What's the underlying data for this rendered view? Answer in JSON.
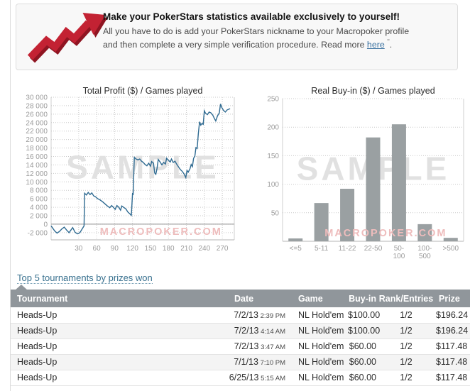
{
  "banner": {
    "title": "Make your PokerStars statistics available exclusively to yourself!",
    "line1": "All you have to do is add your PokerStars nickname to your Macropoker profile",
    "line2_prefix": "and then complete a very simple verification procedure. Read more ",
    "link_label": "here",
    "suffix_mark": "\"",
    "suffix_period": "."
  },
  "colors": {
    "table_header_bg": "#90969b",
    "link_blue": "#39718f",
    "arrow_red": "#c32233",
    "arrow_red_dark": "#8f1522"
  },
  "chart_data": [
    {
      "type": "line",
      "title": "Total Profit ($) / Games played",
      "xlabel": "Games played",
      "ylabel": "Total Profit ($)",
      "xlim": [
        -16,
        290
      ],
      "ylim": [
        -3700,
        30000
      ],
      "xtick_values": [
        30,
        60,
        90,
        120,
        150,
        180,
        210,
        240,
        270
      ],
      "ytick_values": [
        30000,
        28000,
        26000,
        24000,
        22000,
        20000,
        18000,
        16000,
        14000,
        12000,
        10000,
        8000,
        6000,
        4000,
        2000,
        0,
        -2000
      ],
      "ytick_labels": [
        "30 000",
        "28 000",
        "26 000",
        "24 000",
        "22 000",
        "20 000",
        "18 000",
        "16 000",
        "14 000",
        "12 000",
        "10 000",
        "8 000",
        "6 000",
        "4 000",
        "2 000",
        "0",
        "-2 000"
      ],
      "grid": "dotted-both",
      "zero_line": true,
      "watermark": "SAMPLE",
      "watermark2": "MACROPOKER.COM",
      "series": [
        {
          "name": "Total Profit",
          "color": "#2e6a91",
          "points": [
            [
              -16,
              -400
            ],
            [
              -10,
              -1600
            ],
            [
              -6,
              -2100
            ],
            [
              -2,
              -1700
            ],
            [
              2,
              -1100
            ],
            [
              6,
              -700
            ],
            [
              10,
              -1400
            ],
            [
              14,
              -2000
            ],
            [
              17,
              -1400
            ],
            [
              20,
              -800
            ],
            [
              24,
              -1900
            ],
            [
              28,
              -2300
            ],
            [
              32,
              -2000
            ],
            [
              36,
              -1100
            ],
            [
              39,
              -400
            ],
            [
              40,
              7300
            ],
            [
              43,
              6900
            ],
            [
              46,
              7500
            ],
            [
              49,
              7000
            ],
            [
              52,
              7400
            ],
            [
              55,
              6700
            ],
            [
              58,
              6500
            ],
            [
              62,
              6000
            ],
            [
              66,
              5700
            ],
            [
              70,
              5300
            ],
            [
              74,
              4800
            ],
            [
              78,
              4300
            ],
            [
              82,
              3900
            ],
            [
              85,
              4400
            ],
            [
              88,
              4000
            ],
            [
              91,
              3500
            ],
            [
              94,
              4400
            ],
            [
              97,
              4000
            ],
            [
              100,
              3300
            ],
            [
              102,
              4300
            ],
            [
              105,
              4000
            ],
            [
              109,
              3600
            ],
            [
              112,
              2900
            ],
            [
              115,
              2500
            ],
            [
              118,
              2100
            ],
            [
              120,
              7400
            ],
            [
              121,
              6900
            ],
            [
              123,
              15800
            ],
            [
              126,
              15400
            ],
            [
              129,
              15200
            ],
            [
              132,
              15400
            ],
            [
              135,
              14900
            ],
            [
              138,
              14600
            ],
            [
              141,
              14100
            ],
            [
              144,
              13800
            ],
            [
              147,
              14400
            ],
            [
              150,
              13700
            ],
            [
              152,
              14800
            ],
            [
              155,
              14400
            ],
            [
              157,
              12100
            ],
            [
              159,
              11800
            ],
            [
              161,
              13200
            ],
            [
              163,
              15300
            ],
            [
              166,
              14700
            ],
            [
              169,
              14000
            ],
            [
              172,
              14600
            ],
            [
              175,
              14200
            ],
            [
              177,
              15600
            ],
            [
              180,
              15100
            ],
            [
              183,
              14700
            ],
            [
              185,
              15400
            ],
            [
              188,
              14600
            ],
            [
              191,
              14900
            ],
            [
              194,
              14100
            ],
            [
              197,
              13500
            ],
            [
              200,
              12900
            ],
            [
              203,
              12500
            ],
            [
              206,
              11900
            ],
            [
              209,
              11000
            ],
            [
              211,
              12700
            ],
            [
              213,
              12300
            ],
            [
              216,
              13100
            ],
            [
              218,
              14100
            ],
            [
              220,
              13600
            ],
            [
              222,
              15600
            ],
            [
              224,
              16000
            ],
            [
              226,
              18100
            ],
            [
              228,
              17900
            ],
            [
              230,
              21500
            ],
            [
              232,
              24200
            ],
            [
              234,
              23400
            ],
            [
              236,
              23800
            ],
            [
              238,
              23600
            ],
            [
              240,
              26800
            ],
            [
              242,
              26200
            ],
            [
              245,
              25900
            ],
            [
              248,
              26500
            ],
            [
              251,
              26300
            ],
            [
              254,
              25800
            ],
            [
              257,
              24900
            ],
            [
              259,
              24400
            ],
            [
              262,
              25600
            ],
            [
              265,
              26300
            ],
            [
              267,
              28400
            ],
            [
              269,
              27600
            ],
            [
              272,
              26900
            ],
            [
              275,
              26500
            ],
            [
              278,
              27000
            ],
            [
              283,
              27300
            ]
          ]
        }
      ]
    },
    {
      "type": "bar",
      "title": "Real Buy-in ($) / Games played",
      "xlabel": "Real Buy-in ($)",
      "ylabel": "Games played",
      "categories": [
        "<=5",
        "5-11",
        "11-22",
        "22-50",
        "50-\n100",
        "100-\n500",
        ">500"
      ],
      "values": [
        5,
        67,
        92,
        182,
        205,
        30,
        6
      ],
      "ylim": [
        0,
        250
      ],
      "ytick_values": [
        50,
        100,
        150,
        200,
        250
      ],
      "grid": "dotted-horizontal",
      "bar_color": "#9aa0a2",
      "watermark": "SAMPLE",
      "watermark2": "MACROPOKER.COM"
    }
  ],
  "top5": {
    "link_label": "Top 5 tournaments by prizes won"
  },
  "table": {
    "columns": [
      "Tournament",
      "Date",
      "Game",
      "Buy-in",
      "Rank/Entries",
      "Prize"
    ],
    "rows": [
      {
        "tournament": "Heads-Up",
        "date": "7/2/13",
        "time": "2:39 PM",
        "game": "NL Hold'em",
        "buyin": "$100.00",
        "rank": "1/2",
        "prize": "$196.24"
      },
      {
        "tournament": "Heads-Up",
        "date": "7/2/13",
        "time": "4:14 AM",
        "game": "NL Hold'em",
        "buyin": "$100.00",
        "rank": "1/2",
        "prize": "$196.24"
      },
      {
        "tournament": "Heads-Up",
        "date": "7/2/13",
        "time": "3:47 AM",
        "game": "NL Hold'em",
        "buyin": "$60.00",
        "rank": "1/2",
        "prize": "$117.48"
      },
      {
        "tournament": "Heads-Up",
        "date": "7/1/13",
        "time": "7:10 PM",
        "game": "NL Hold'em",
        "buyin": "$60.00",
        "rank": "1/2",
        "prize": "$117.48"
      },
      {
        "tournament": "Heads-Up",
        "date": "6/25/13",
        "time": "5:15 AM",
        "game": "NL Hold'em",
        "buyin": "$60.00",
        "rank": "1/2",
        "prize": "$117.48"
      }
    ]
  }
}
